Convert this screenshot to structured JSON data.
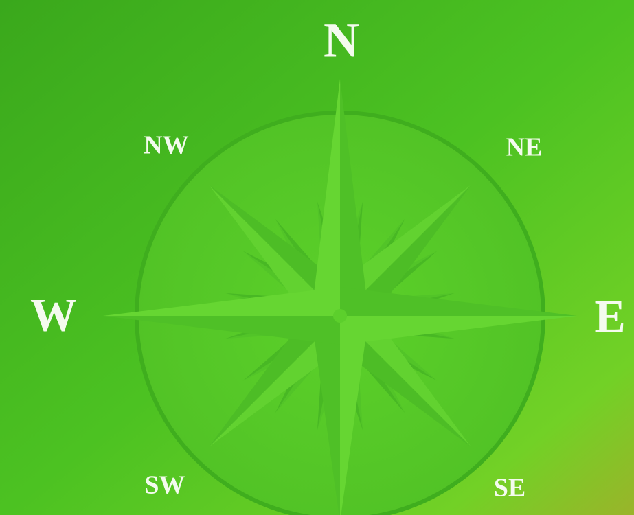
{
  "compass": {
    "labels": {
      "n": "N",
      "ne": "NE",
      "e": "E",
      "se": "SE",
      "sw": "SW",
      "w": "W",
      "nw": "NW"
    }
  }
}
